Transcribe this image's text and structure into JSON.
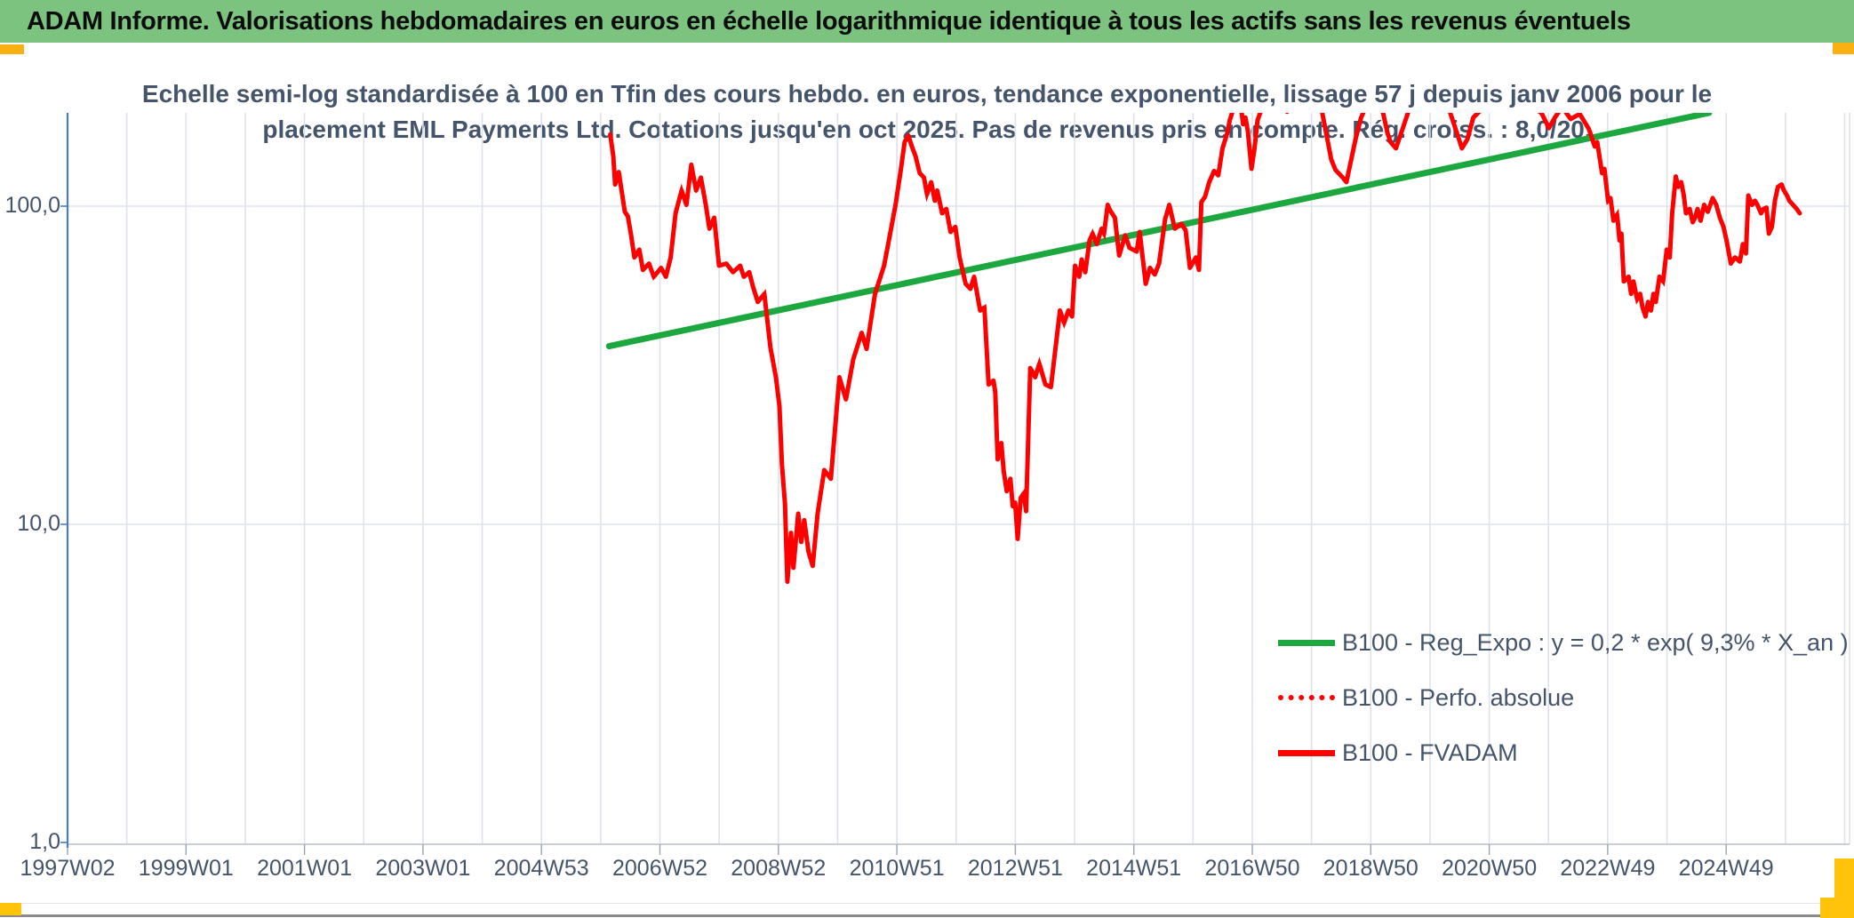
{
  "header": {
    "title": "ADAM Informe. Valorisations hebdomadaires en euros en échelle logarithmique identique à tous les actifs sans les revenus éventuels",
    "bg_color": "#7CC380"
  },
  "subtitle": {
    "line1": "Echelle semi-log standardisée à 100 en Tfin des cours hebdo. en euros, tendance exponentielle, lissage 57 j depuis janv 2006 pour le",
    "line2": "placement EML Payments Ltd. Cotations jusqu'en oct 2025. Pas de revenus pris en compte. Rég. croiss. : 8,0/20."
  },
  "accents": {
    "gold": "#F9B013",
    "gold_bottom": "#FFC30B",
    "grid": "#DDE2EB",
    "axis_bottom": "#C9CFDA",
    "y_axis_blue": "#4A7EBB",
    "text": "#44546A"
  },
  "chart_data": {
    "type": "line",
    "title": "Echelle semi-log standardisée à 100 en Tfin des cours hebdo. en euros, tendance exponentielle, lissage 57 j depuis janv 2006 pour le placement EML Payments Ltd. Cotations jusqu'en oct 2025. Pas de revenus pris en compte. Rég. croiss. : 8,0/20.",
    "xlabel": "",
    "ylabel": "",
    "y_scale": "log",
    "ylim": [
      1,
      196
    ],
    "x_range_years": [
      1997.04,
      2026.5
    ],
    "grid": "on",
    "legend_position": "lower-right-inside",
    "y_axis": {
      "ticks": [
        {
          "label": "100,0",
          "value": 100
        },
        {
          "label": "10,0",
          "value": 10
        },
        {
          "label": "1,0",
          "value": 1
        }
      ]
    },
    "x_axis": {
      "tick_step_years": 1.96,
      "ticks": [
        {
          "label": "1997W02"
        },
        {
          "label": "1999W01"
        },
        {
          "label": "2001W01"
        },
        {
          "label": "2003W01"
        },
        {
          "label": "2004W53"
        },
        {
          "label": "2006W52"
        },
        {
          "label": "2008W52"
        },
        {
          "label": "2010W51"
        },
        {
          "label": "2012W51"
        },
        {
          "label": "2014W51"
        },
        {
          "label": "2016W50"
        },
        {
          "label": "2018W50"
        },
        {
          "label": "2020W50"
        },
        {
          "label": "2022W49"
        },
        {
          "label": "2024W49"
        }
      ]
    },
    "series": [
      {
        "name": "B100 - Reg_Expo : y = 0,2 * exp( 9,3% * X_an )",
        "color": "#1CA83E",
        "style": "solid",
        "width": 7,
        "points": [
          [
            2006.0,
            36.3
          ],
          [
            2024.2,
            196.5
          ]
        ]
      },
      {
        "name": "B100 - Perfo. absolue",
        "color": "#FE0000",
        "style": "dotted",
        "width": 4.5,
        "coincides_with": "B100 - FVADAM"
      },
      {
        "name": "B100 - FVADAM",
        "color": "#FE0000",
        "style": "solid",
        "width": 5,
        "points": [
          [
            2006.02,
            168
          ],
          [
            2006.07,
            144
          ],
          [
            2006.1,
            117
          ],
          [
            2006.16,
            128
          ],
          [
            2006.26,
            96
          ],
          [
            2006.31,
            93
          ],
          [
            2006.36,
            82
          ],
          [
            2006.42,
            69
          ],
          [
            2006.5,
            73
          ],
          [
            2006.56,
            63
          ],
          [
            2006.66,
            66
          ],
          [
            2006.74,
            60
          ],
          [
            2006.86,
            64
          ],
          [
            2006.94,
            60
          ],
          [
            2007.02,
            69
          ],
          [
            2007.1,
            95
          ],
          [
            2007.2,
            112
          ],
          [
            2007.28,
            101
          ],
          [
            2007.36,
            135
          ],
          [
            2007.44,
            112
          ],
          [
            2007.52,
            123
          ],
          [
            2007.6,
            101
          ],
          [
            2007.66,
            85
          ],
          [
            2007.74,
            92
          ],
          [
            2007.82,
            65
          ],
          [
            2007.94,
            66
          ],
          [
            2008.05,
            62
          ],
          [
            2008.17,
            65
          ],
          [
            2008.23,
            60
          ],
          [
            2008.32,
            62
          ],
          [
            2008.38,
            56
          ],
          [
            2008.46,
            50
          ],
          [
            2008.57,
            53
          ],
          [
            2008.67,
            36
          ],
          [
            2008.76,
            29
          ],
          [
            2008.82,
            23.5
          ],
          [
            2008.86,
            15.4
          ],
          [
            2008.91,
            11.6
          ],
          [
            2008.95,
            6.6
          ],
          [
            2009.01,
            9.4
          ],
          [
            2009.05,
            7.3
          ],
          [
            2009.13,
            10.8
          ],
          [
            2009.18,
            8.8
          ],
          [
            2009.23,
            10.3
          ],
          [
            2009.3,
            8.2
          ],
          [
            2009.37,
            7.4
          ],
          [
            2009.45,
            10.8
          ],
          [
            2009.56,
            14.8
          ],
          [
            2009.67,
            13.9
          ],
          [
            2009.81,
            29
          ],
          [
            2009.92,
            24.7
          ],
          [
            2010.04,
            33
          ],
          [
            2010.18,
            40
          ],
          [
            2010.26,
            35.6
          ],
          [
            2010.4,
            53
          ],
          [
            2010.55,
            65
          ],
          [
            2010.63,
            78
          ],
          [
            2010.74,
            101
          ],
          [
            2010.83,
            131
          ],
          [
            2010.89,
            159
          ],
          [
            2010.95,
            167
          ],
          [
            2011.01,
            154
          ],
          [
            2011.07,
            144
          ],
          [
            2011.14,
            127
          ],
          [
            2011.21,
            123
          ],
          [
            2011.26,
            109
          ],
          [
            2011.33,
            119
          ],
          [
            2011.39,
            104
          ],
          [
            2011.43,
            112
          ],
          [
            2011.51,
            95
          ],
          [
            2011.58,
            98
          ],
          [
            2011.65,
            83
          ],
          [
            2011.73,
            86
          ],
          [
            2011.8,
            69
          ],
          [
            2011.9,
            57
          ],
          [
            2011.98,
            55
          ],
          [
            2012.04,
            60
          ],
          [
            2012.14,
            47
          ],
          [
            2012.21,
            48
          ],
          [
            2012.28,
            27.5
          ],
          [
            2012.36,
            28.3
          ],
          [
            2012.39,
            26
          ],
          [
            2012.43,
            16
          ],
          [
            2012.49,
            18
          ],
          [
            2012.53,
            14.7
          ],
          [
            2012.58,
            12.7
          ],
          [
            2012.64,
            13.9
          ],
          [
            2012.68,
            11.4
          ],
          [
            2012.72,
            11.7
          ],
          [
            2012.76,
            9
          ],
          [
            2012.81,
            12.1
          ],
          [
            2012.86,
            12.5
          ],
          [
            2012.9,
            11
          ],
          [
            2012.97,
            31
          ],
          [
            2013.05,
            29
          ],
          [
            2013.12,
            32
          ],
          [
            2013.22,
            27.5
          ],
          [
            2013.31,
            27
          ],
          [
            2013.46,
            47
          ],
          [
            2013.53,
            43
          ],
          [
            2013.6,
            47
          ],
          [
            2013.66,
            45
          ],
          [
            2013.71,
            65
          ],
          [
            2013.78,
            60
          ],
          [
            2013.82,
            68
          ],
          [
            2013.88,
            62
          ],
          [
            2013.95,
            78
          ],
          [
            2014.0,
            82
          ],
          [
            2014.07,
            76
          ],
          [
            2014.15,
            85
          ],
          [
            2014.19,
            82
          ],
          [
            2014.25,
            101
          ],
          [
            2014.29,
            97
          ],
          [
            2014.37,
            92
          ],
          [
            2014.44,
            70
          ],
          [
            2014.54,
            81
          ],
          [
            2014.61,
            74
          ],
          [
            2014.73,
            72
          ],
          [
            2014.78,
            83
          ],
          [
            2014.88,
            57
          ],
          [
            2014.95,
            64
          ],
          [
            2015.03,
            61
          ],
          [
            2015.1,
            66
          ],
          [
            2015.2,
            91
          ],
          [
            2015.27,
            101
          ],
          [
            2015.36,
            85
          ],
          [
            2015.47,
            88
          ],
          [
            2015.54,
            84
          ],
          [
            2015.61,
            64
          ],
          [
            2015.71,
            69
          ],
          [
            2015.76,
            63
          ],
          [
            2015.8,
            103
          ],
          [
            2015.86,
            107
          ],
          [
            2015.93,
            119
          ],
          [
            2016.01,
            129
          ],
          [
            2016.08,
            125
          ],
          [
            2016.15,
            152
          ],
          [
            2016.23,
            170
          ],
          [
            2016.27,
            186
          ],
          [
            2016.34,
            205
          ],
          [
            2016.45,
            210
          ],
          [
            2016.49,
            181
          ],
          [
            2016.53,
            190
          ],
          [
            2016.57,
            172
          ],
          [
            2016.63,
            131
          ],
          [
            2016.68,
            152
          ],
          [
            2016.73,
            186
          ],
          [
            2016.82,
            208
          ],
          [
            2017.07,
            215
          ],
          [
            2017.22,
            198
          ],
          [
            2017.36,
            220
          ],
          [
            2017.58,
            205
          ],
          [
            2017.76,
            215
          ],
          [
            2017.95,
            140
          ],
          [
            2018.02,
            130
          ],
          [
            2018.14,
            123
          ],
          [
            2018.2,
            119
          ],
          [
            2018.35,
            162
          ],
          [
            2018.44,
            189
          ],
          [
            2018.54,
            210
          ],
          [
            2018.76,
            215
          ],
          [
            2018.88,
            170
          ],
          [
            2018.93,
            159
          ],
          [
            2019.02,
            152
          ],
          [
            2019.13,
            175
          ],
          [
            2019.27,
            210
          ],
          [
            2019.57,
            220
          ],
          [
            2019.86,
            212
          ],
          [
            2020.05,
            165
          ],
          [
            2020.11,
            152
          ],
          [
            2020.2,
            162
          ],
          [
            2020.3,
            190
          ],
          [
            2020.59,
            215
          ],
          [
            2020.89,
            225
          ],
          [
            2021.18,
            212
          ],
          [
            2021.43,
            196
          ],
          [
            2021.55,
            176
          ],
          [
            2021.65,
            190
          ],
          [
            2021.77,
            205
          ],
          [
            2021.91,
            188
          ],
          [
            2022.06,
            195
          ],
          [
            2022.21,
            175
          ],
          [
            2022.31,
            154
          ],
          [
            2022.35,
            159
          ],
          [
            2022.43,
            127
          ],
          [
            2022.47,
            131
          ],
          [
            2022.53,
            104
          ],
          [
            2022.57,
            106
          ],
          [
            2022.62,
            90
          ],
          [
            2022.68,
            94
          ],
          [
            2022.72,
            78
          ],
          [
            2022.75,
            82
          ],
          [
            2022.79,
            58
          ],
          [
            2022.87,
            60
          ],
          [
            2022.91,
            53
          ],
          [
            2022.95,
            58
          ],
          [
            2023.01,
            51
          ],
          [
            2023.06,
            53
          ],
          [
            2023.1,
            48
          ],
          [
            2023.15,
            45
          ],
          [
            2023.19,
            50
          ],
          [
            2023.24,
            47
          ],
          [
            2023.28,
            53
          ],
          [
            2023.32,
            50
          ],
          [
            2023.38,
            60
          ],
          [
            2023.44,
            58
          ],
          [
            2023.5,
            73
          ],
          [
            2023.55,
            69
          ],
          [
            2023.59,
            95
          ],
          [
            2023.65,
            124
          ],
          [
            2023.69,
            115
          ],
          [
            2023.74,
            119
          ],
          [
            2023.78,
            109
          ],
          [
            2023.82,
            95
          ],
          [
            2023.88,
            98
          ],
          [
            2023.93,
            89
          ],
          [
            2023.97,
            92
          ],
          [
            2024.01,
            98
          ],
          [
            2024.06,
            90
          ],
          [
            2024.12,
            101
          ],
          [
            2024.18,
            96
          ],
          [
            2024.26,
            106
          ],
          [
            2024.32,
            101
          ],
          [
            2024.38,
            92
          ],
          [
            2024.44,
            86
          ],
          [
            2024.49,
            78
          ],
          [
            2024.56,
            66
          ],
          [
            2024.63,
            69
          ],
          [
            2024.71,
            67
          ],
          [
            2024.76,
            76
          ],
          [
            2024.81,
            71
          ],
          [
            2024.85,
            108
          ],
          [
            2024.91,
            101
          ],
          [
            2024.96,
            104
          ],
          [
            2025.0,
            101
          ],
          [
            2025.06,
            95
          ],
          [
            2025.1,
            98
          ],
          [
            2025.15,
            99
          ],
          [
            2025.19,
            82
          ],
          [
            2025.24,
            86
          ],
          [
            2025.29,
            104
          ],
          [
            2025.34,
            115
          ],
          [
            2025.4,
            117
          ],
          [
            2025.44,
            112
          ],
          [
            2025.49,
            108
          ],
          [
            2025.53,
            104
          ],
          [
            2025.59,
            101
          ],
          [
            2025.65,
            98
          ],
          [
            2025.7,
            95
          ]
        ]
      }
    ]
  }
}
